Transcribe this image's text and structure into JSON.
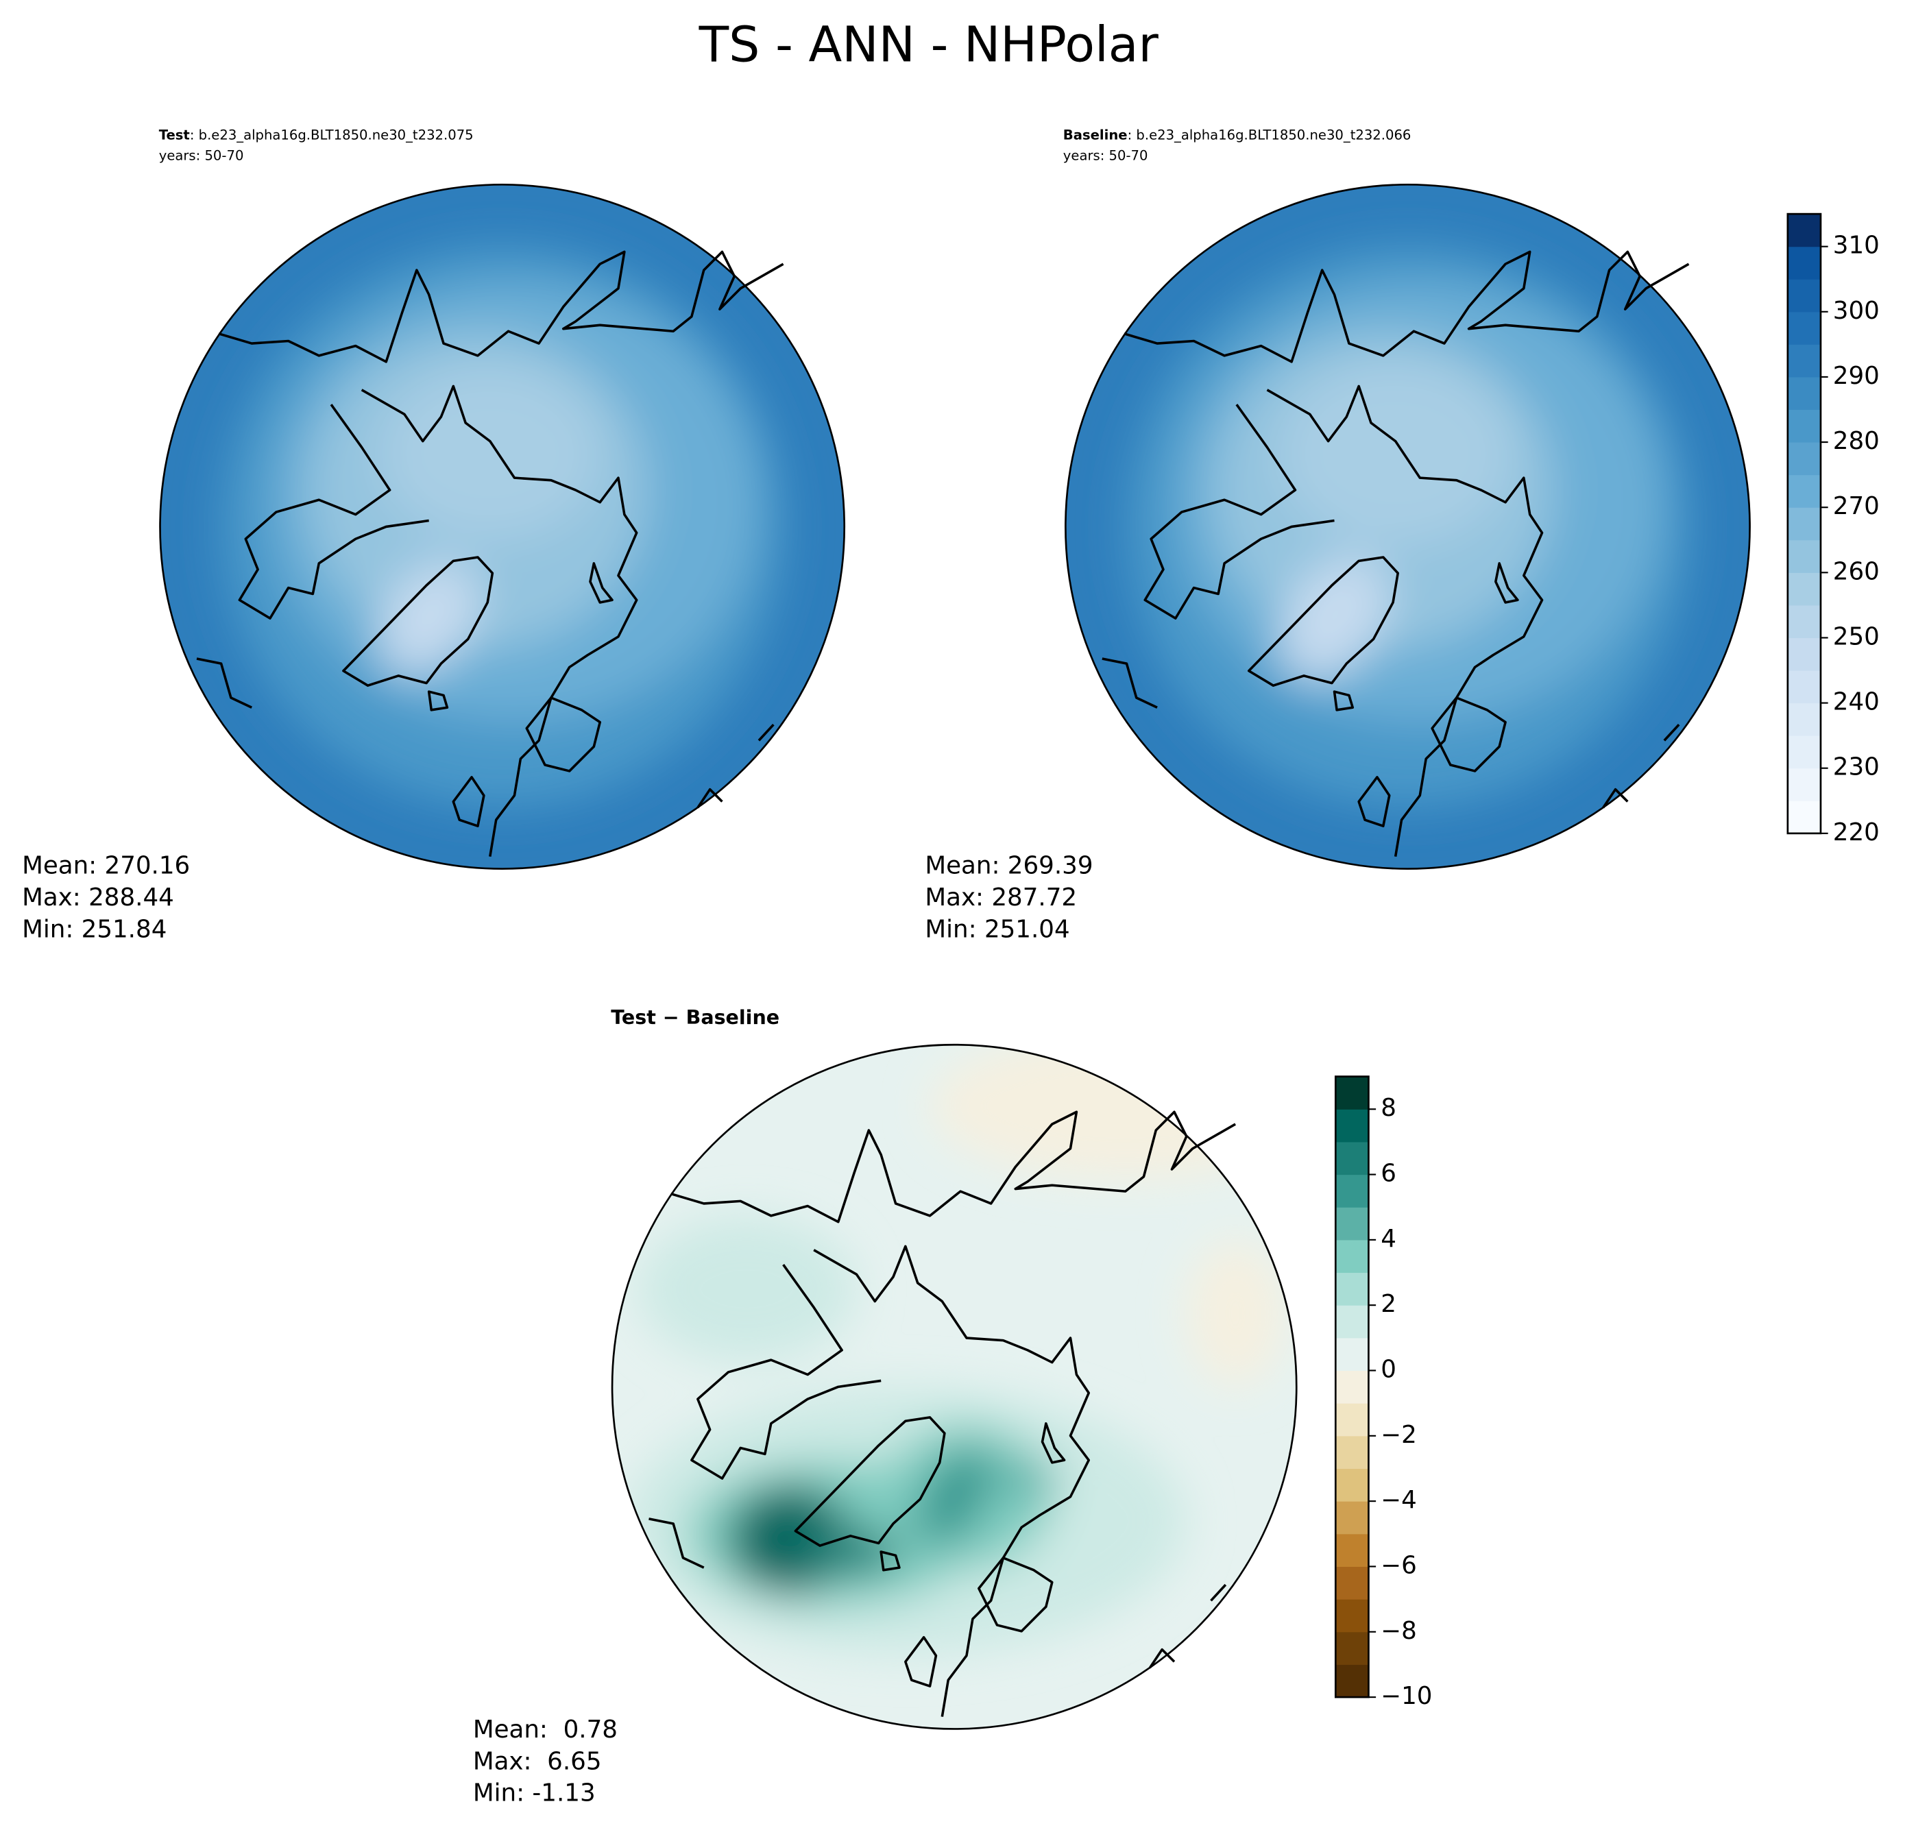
{
  "title": "TS - ANN - NHPolar",
  "panels": [
    {
      "label": "Test",
      "case": ": b.e23_alpha16g.BLT1850.ne30_t232.075",
      "years": "years: 50-70",
      "stats": [
        "Mean: 270.16",
        "Max: 288.44",
        "Min: 251.84"
      ]
    },
    {
      "label": "Baseline",
      "case": ": b.e23_alpha16g.BLT1850.ne30_t232.066",
      "years": "years: 50-70",
      "stats": [
        "Mean: 269.39",
        "Max: 287.72",
        "Min: 251.04"
      ]
    },
    {
      "label": "Test − Baseline",
      "stats": [
        "Mean:  0.78",
        "Max:  6.65",
        "Min: -1.13"
      ]
    }
  ],
  "colorbars": [
    {
      "ylim": [
        220,
        315
      ],
      "ticks": [
        220,
        230,
        240,
        250,
        260,
        270,
        280,
        290,
        300,
        310
      ],
      "levels": [
        220,
        225,
        230,
        235,
        240,
        245,
        250,
        255,
        260,
        265,
        270,
        275,
        280,
        285,
        290,
        295,
        300,
        305,
        310,
        315
      ],
      "colors": [
        "#f7fbff",
        "#eef5fc",
        "#e4eff9",
        "#dbe9f6",
        "#d1e2f3",
        "#c6dbef",
        "#b8d5ea",
        "#a8cee4",
        "#94c4df",
        "#81badb",
        "#6aaed6",
        "#5aa2cf",
        "#4a98c9",
        "#3b8bc2",
        "#2e7ebc",
        "#2171b5",
        "#1764ab",
        "#0d57a1",
        "#08306b"
      ]
    },
    {
      "ylim": [
        -10,
        9
      ],
      "ticks": [
        {
          "value": -10,
          "label": "−10"
        },
        {
          "value": -8,
          "label": "−8"
        },
        {
          "value": -6,
          "label": "−6"
        },
        {
          "value": -4,
          "label": "−4"
        },
        {
          "value": -2,
          "label": "−2"
        },
        0,
        2,
        4,
        6,
        8
      ],
      "levels": [
        -10,
        -9,
        -8,
        -7,
        -6,
        -5,
        -4,
        -3,
        -2,
        -1,
        0,
        1,
        2,
        3,
        4,
        5,
        6,
        7,
        8,
        9
      ],
      "colors": [
        "#543005",
        "#6e4108",
        "#8a510b",
        "#a7661c",
        "#bf812d",
        "#cfa052",
        "#dfc27d",
        "#e8d49f",
        "#f1e5c3",
        "#f5f0e0",
        "#e6f2f0",
        "#cdeae5",
        "#a9ddd5",
        "#80cdc1",
        "#5cb1a7",
        "#35978f",
        "#1c7f77",
        "#01665e",
        "#003c30"
      ]
    }
  ]
}
